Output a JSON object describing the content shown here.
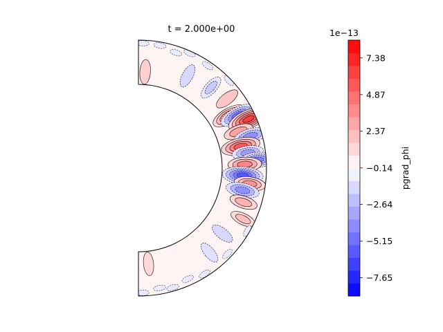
{
  "chart_data": {
    "type": "heatmap",
    "title": "t = 2.000e+00",
    "geometry": "meridional shell section (half annulus)",
    "colormap": "bwr",
    "colors": {
      "negative_end": "#1414ff",
      "positive_end": "#ff1414",
      "midpoint": "#ffffff",
      "contour_line": "#000000"
    },
    "colorbar": {
      "label": "pgrad_phi",
      "offset_text": "1e−13",
      "range": [
        -8.9,
        8.6
      ],
      "levels": 20,
      "ticks": [
        {
          "value": 7.38,
          "label": "7.38"
        },
        {
          "value": 4.87,
          "label": "4.87"
        },
        {
          "value": 2.37,
          "label": "2.37"
        },
        {
          "value": -0.14,
          "label": "−0.14"
        },
        {
          "value": -2.64,
          "label": "−2.64"
        },
        {
          "value": -5.15,
          "label": "−5.15"
        },
        {
          "value": -7.65,
          "label": "−7.65"
        }
      ]
    },
    "features": [
      {
        "angle_deg": 62,
        "radius": 0.78,
        "value": -1.5
      },
      {
        "angle_deg": 48,
        "radius": 0.82,
        "value": -2.0
      },
      {
        "angle_deg": 38,
        "radius": 0.86,
        "value": 1.8
      },
      {
        "angle_deg": 30,
        "radius": 0.78,
        "value": 4.5
      },
      {
        "angle_deg": 28,
        "radius": 0.86,
        "value": -5.0
      },
      {
        "angle_deg": 24,
        "radius": 0.94,
        "value": 6.5
      },
      {
        "angle_deg": 20,
        "radius": 0.8,
        "value": 3.0
      },
      {
        "angle_deg": 16,
        "radius": 0.9,
        "value": -4.0
      },
      {
        "angle_deg": 12,
        "radius": 0.78,
        "value": 5.5
      },
      {
        "angle_deg": 8,
        "radius": 0.84,
        "value": -3.5
      },
      {
        "angle_deg": 4,
        "radius": 0.93,
        "value": -4.5
      },
      {
        "angle_deg": 2,
        "radius": 0.8,
        "value": 4.0
      },
      {
        "angle_deg": -4,
        "radius": 0.78,
        "value": -6.0
      },
      {
        "angle_deg": -8,
        "radius": 0.86,
        "value": 3.5
      },
      {
        "angle_deg": -12,
        "radius": 0.8,
        "value": -4.0
      },
      {
        "angle_deg": -18,
        "radius": 0.84,
        "value": 2.5
      },
      {
        "angle_deg": -26,
        "radius": 0.9,
        "value": 2.0
      },
      {
        "angle_deg": -38,
        "radius": 0.8,
        "value": -1.5
      },
      {
        "angle_deg": -50,
        "radius": 0.84,
        "value": -1.2
      },
      {
        "angle_deg": 86,
        "radius": 0.7,
        "value": 1.5
      },
      {
        "angle_deg": -84,
        "radius": 0.7,
        "value": 1.2
      }
    ]
  }
}
